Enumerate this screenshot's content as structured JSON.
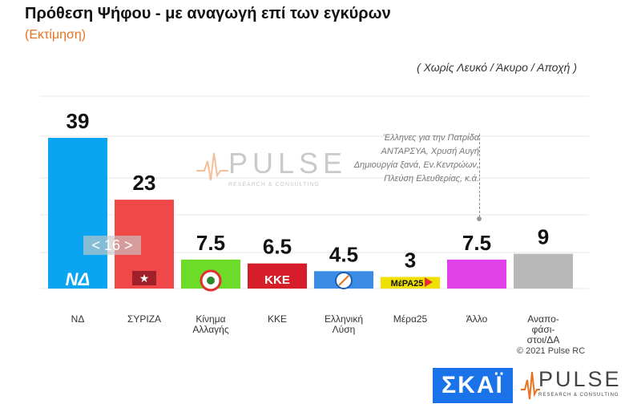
{
  "title": "Πρόθεση Ψήφου - με αναγωγή επί των εγκύρων",
  "subtitle": "(Εκτίμηση)",
  "note": "( Χωρίς Λευκό / Άκυρο / Αποχή )",
  "watermark": {
    "word": "PULSE",
    "tagline": "RESEARCH & CONSULTING"
  },
  "others_note": [
    "Έλληνες για την Πατρίδα",
    "ΑΝΤΑΡΣΥΑ, Χρυσή Αυγή",
    "Δημιουργία ξανά, Εν.Κεντρώων,",
    "Πλεύση Ελευθερίας, κ.ά."
  ],
  "badge": "< 16 >",
  "copyright": "© 2021 Pulse RC",
  "logos": {
    "skai": "ΣΚΑΪ",
    "pulse": "PULSE",
    "pulse_tagline": "RESEARCH & CONSULTING"
  },
  "party_marks": [
    "ΝΔ",
    "★",
    "",
    "ΚΚΕ",
    "",
    "ΜέΡΑ25",
    "",
    ""
  ],
  "chart_data": {
    "type": "bar",
    "categories": [
      "ΝΔ",
      "ΣΥΡΙΖΑ",
      "Κίνημα Αλλαγής",
      "ΚΚΕ",
      "Ελληνική Λύση",
      "Μέρα25",
      "Άλλο",
      "Αναποφάσιστοι/ΔΑ"
    ],
    "category_lines": [
      [
        "ΝΔ"
      ],
      [
        "ΣΥΡΙΖΑ"
      ],
      [
        "Κίνημα",
        "Αλλαγής"
      ],
      [
        "ΚΚΕ"
      ],
      [
        "Ελληνική",
        "Λύση"
      ],
      [
        "Μέρα25"
      ],
      [
        "Άλλο"
      ],
      [
        "Αναπο-",
        "φάσι-",
        "στοι/ΔΑ"
      ]
    ],
    "values": [
      39,
      23,
      7.5,
      6.5,
      4.5,
      3,
      7.5,
      9
    ],
    "value_labels": [
      "39",
      "23",
      "7.5",
      "6.5",
      "4.5",
      "3",
      "7.5",
      "9"
    ],
    "colors": [
      "#0aa5f0",
      "#f04848",
      "#6cdc28",
      "#d61e2a",
      "#3c8ce6",
      "#f0e000",
      "#e040e8",
      "#b8b8b8"
    ],
    "ylim": [
      0,
      39
    ],
    "grid": true
  }
}
